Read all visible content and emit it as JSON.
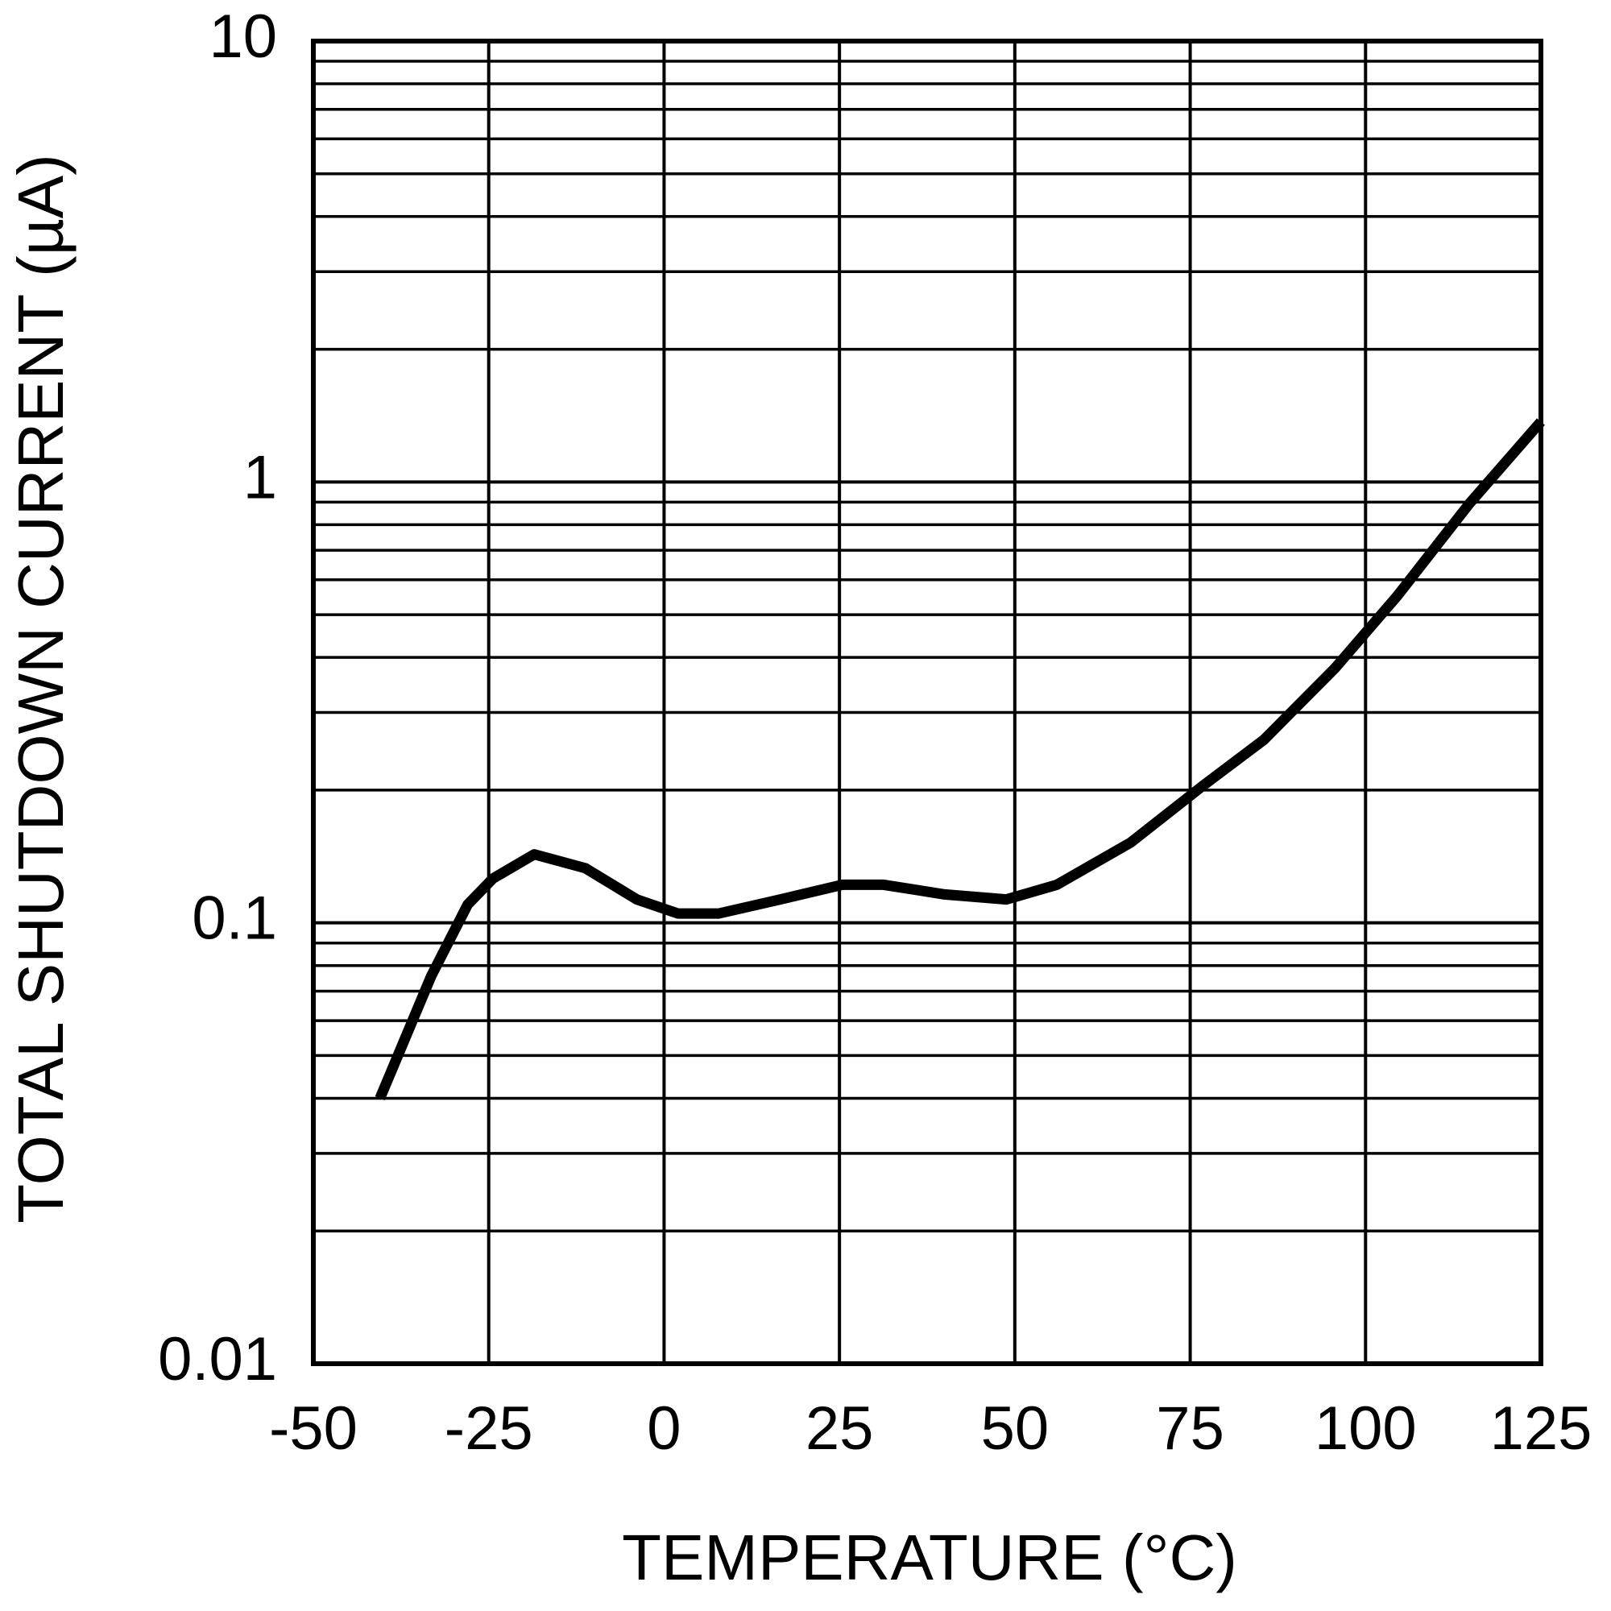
{
  "chart_data": {
    "type": "line",
    "x_label": "TEMPERATURE (°C)",
    "y_label": "TOTAL SHUTDOWN CURRENT (µA)",
    "x": [
      -40.5,
      -33.2,
      -28,
      -24.4,
      -18.5,
      -11.2,
      -3.9,
      2,
      7.8,
      16.6,
      25.4,
      31.3,
      40,
      48.8,
      56,
      66.5,
      76.7,
      85.5,
      95.7,
      104.5,
      114.8,
      125
    ],
    "values": [
      0.04,
      0.0757,
      0.11,
      0.126,
      0.143,
      0.133,
      0.113,
      0.105,
      0.105,
      0.113,
      0.122,
      0.122,
      0.116,
      0.113,
      0.122,
      0.152,
      0.204,
      0.26,
      0.379,
      0.551,
      0.893,
      1.37
    ],
    "color": "#000000",
    "xlim": [
      -50,
      125
    ],
    "xticks": [
      -50,
      -25,
      0,
      25,
      50,
      75,
      100,
      125
    ],
    "ylim": [
      0.01,
      10
    ],
    "yticks": [
      0.01,
      0.1,
      1,
      10
    ],
    "minor_yticks": [
      0.02,
      0.03,
      0.04,
      0.05,
      0.06,
      0.07,
      0.08,
      0.09,
      0.2,
      0.3,
      0.4,
      0.5,
      0.6,
      0.7,
      0.8,
      0.9,
      2,
      3,
      4,
      5,
      6,
      7,
      8,
      9
    ],
    "y_log": true,
    "grid": true
  }
}
